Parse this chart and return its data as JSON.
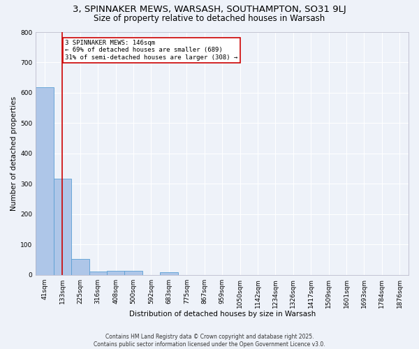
{
  "title": "3, SPINNAKER MEWS, WARSASH, SOUTHAMPTON, SO31 9LJ",
  "subtitle": "Size of property relative to detached houses in Warsash",
  "xlabel": "Distribution of detached houses by size in Warsash",
  "ylabel": "Number of detached properties",
  "bin_labels": [
    "41sqm",
    "133sqm",
    "225sqm",
    "316sqm",
    "408sqm",
    "500sqm",
    "592sqm",
    "683sqm",
    "775sqm",
    "867sqm",
    "959sqm",
    "1050sqm",
    "1142sqm",
    "1234sqm",
    "1326sqm",
    "1417sqm",
    "1509sqm",
    "1601sqm",
    "1693sqm",
    "1784sqm",
    "1876sqm"
  ],
  "bar_heights": [
    619,
    316,
    52,
    10,
    13,
    14,
    0,
    8,
    0,
    0,
    0,
    0,
    0,
    0,
    0,
    0,
    0,
    0,
    0,
    0,
    0
  ],
  "bar_color": "#aec6e8",
  "bar_edge_color": "#5a9fd4",
  "background_color": "#eef2f9",
  "grid_color": "#ffffff",
  "red_line_x": 1.0,
  "property_line_label": "3 SPINNAKER MEWS: 146sqm",
  "annotation_line1": "← 69% of detached houses are smaller (689)",
  "annotation_line2": "31% of semi-detached houses are larger (308) →",
  "annotation_box_color": "#ffffff",
  "annotation_box_edge": "#cc0000",
  "ylim": [
    0,
    800
  ],
  "yticks": [
    0,
    100,
    200,
    300,
    400,
    500,
    600,
    700,
    800
  ],
  "footer_line1": "Contains HM Land Registry data © Crown copyright and database right 2025.",
  "footer_line2": "Contains public sector information licensed under the Open Government Licence v3.0.",
  "title_fontsize": 9.5,
  "subtitle_fontsize": 8.5,
  "axis_label_fontsize": 7.5,
  "tick_fontsize": 6.5,
  "annotation_fontsize": 6.5,
  "footer_fontsize": 5.5
}
